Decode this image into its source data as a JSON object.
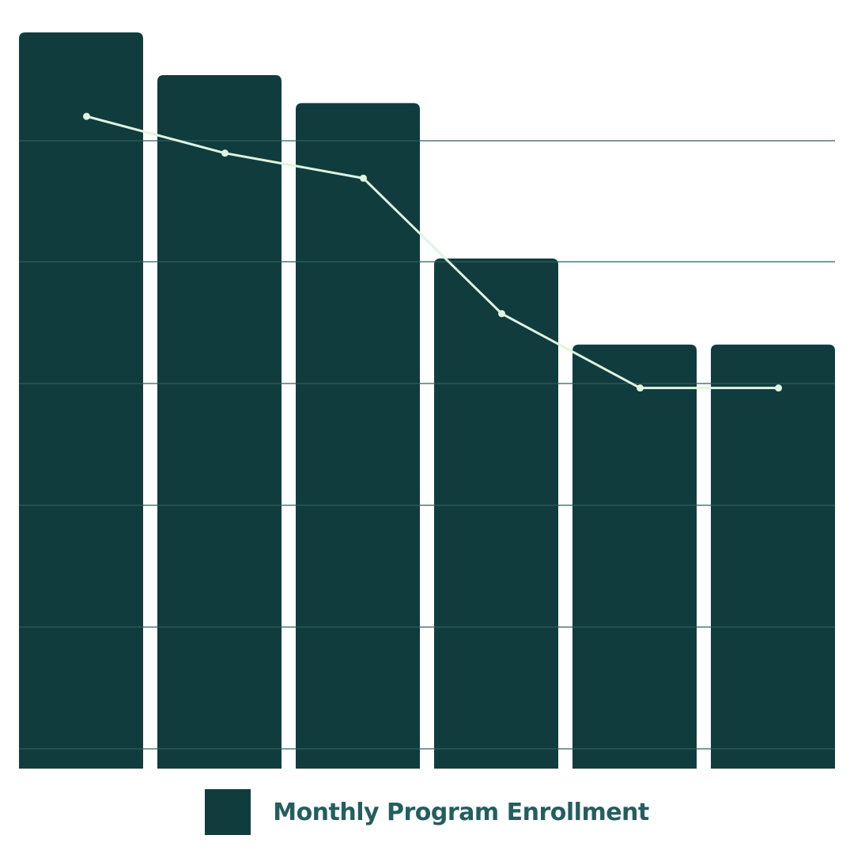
{
  "chart_data": {
    "type": "bar",
    "title": "",
    "xlabel": "",
    "ylabel": "",
    "categories": [
      "",
      "",
      "",
      "",
      "",
      ""
    ],
    "grid": true,
    "legend_placement": "bottom",
    "ylim": [
      0,
      100
    ],
    "series": [
      {
        "name": "Monthly Program Enrollment",
        "type": "bar",
        "values": [
          100,
          94.2,
          90.4,
          69.3,
          57.6,
          57.6
        ]
      },
      {
        "name": "",
        "type": "line",
        "values": [
          88.6,
          83.6,
          80.2,
          61.8,
          51.7,
          51.7
        ]
      }
    ],
    "colors": {
      "bar": "#113c3d",
      "line": "#dff5df",
      "grid": "#2f5d5d",
      "legend_text": "#245e5f"
    }
  }
}
